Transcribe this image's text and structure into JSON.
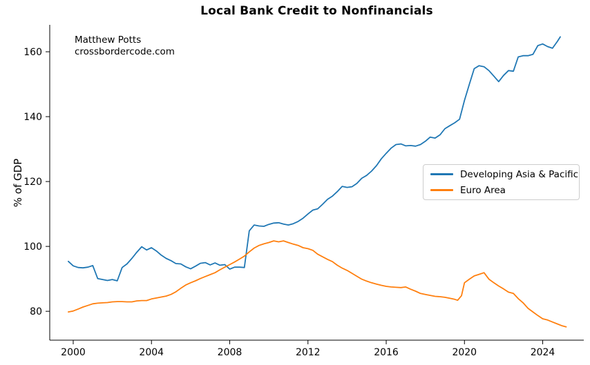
{
  "title": "Local Bank Credit to Nonfinancials",
  "annotation": {
    "line1": "Matthew Potts",
    "line2": "crossbordercode.com"
  },
  "y_axis_label": "% of GDP",
  "legend": {
    "items": [
      {
        "label": "Developing Asia & Pacific",
        "color": "#1f77b4"
      },
      {
        "label": "Euro Area",
        "color": "#ff7f0e"
      }
    ]
  },
  "chart_data": {
    "type": "line",
    "title": "Local Bank Credit to Nonfinancials",
    "xlabel": "",
    "ylabel": "% of GDP",
    "xlim": [
      1998.8,
      2026.1
    ],
    "ylim": [
      71.1,
      168.3
    ],
    "x_ticks": [
      2000,
      2004,
      2008,
      2012,
      2016,
      2020,
      2024
    ],
    "y_ticks": [
      80,
      100,
      120,
      140,
      160
    ],
    "grid": false,
    "legend_position": "center right",
    "annotation": "Matthew Potts\ncrossbordercode.com",
    "series": [
      {
        "name": "Developing Asia & Pacific",
        "color": "#1f77b4",
        "points": [
          [
            1999.75,
            95.4
          ],
          [
            2000.0,
            94.0
          ],
          [
            2000.25,
            93.5
          ],
          [
            2000.5,
            93.4
          ],
          [
            2000.75,
            93.6
          ],
          [
            2001.0,
            94.1
          ],
          [
            2001.25,
            90.1
          ],
          [
            2001.5,
            89.8
          ],
          [
            2001.75,
            89.5
          ],
          [
            2002.0,
            89.8
          ],
          [
            2002.25,
            89.4
          ],
          [
            2002.5,
            93.5
          ],
          [
            2002.75,
            94.6
          ],
          [
            2003.0,
            96.3
          ],
          [
            2003.25,
            98.2
          ],
          [
            2003.5,
            99.9
          ],
          [
            2003.75,
            98.9
          ],
          [
            2004.0,
            99.6
          ],
          [
            2004.25,
            98.6
          ],
          [
            2004.5,
            97.3
          ],
          [
            2004.75,
            96.3
          ],
          [
            2005.0,
            95.6
          ],
          [
            2005.25,
            94.7
          ],
          [
            2005.5,
            94.6
          ],
          [
            2005.75,
            93.7
          ],
          [
            2006.0,
            93.1
          ],
          [
            2006.25,
            93.9
          ],
          [
            2006.5,
            94.8
          ],
          [
            2006.75,
            95.0
          ],
          [
            2007.0,
            94.3
          ],
          [
            2007.25,
            94.9
          ],
          [
            2007.5,
            94.2
          ],
          [
            2007.75,
            94.4
          ],
          [
            2008.0,
            93.0
          ],
          [
            2008.25,
            93.6
          ],
          [
            2008.5,
            93.6
          ],
          [
            2008.75,
            93.5
          ],
          [
            2009.0,
            104.8
          ],
          [
            2009.25,
            106.6
          ],
          [
            2009.5,
            106.3
          ],
          [
            2009.75,
            106.2
          ],
          [
            2010.0,
            106.8
          ],
          [
            2010.25,
            107.2
          ],
          [
            2010.5,
            107.3
          ],
          [
            2010.75,
            106.9
          ],
          [
            2011.0,
            106.6
          ],
          [
            2011.25,
            107.0
          ],
          [
            2011.5,
            107.7
          ],
          [
            2011.75,
            108.7
          ],
          [
            2012.0,
            110.0
          ],
          [
            2012.25,
            111.2
          ],
          [
            2012.5,
            111.6
          ],
          [
            2012.75,
            113.0
          ],
          [
            2013.0,
            114.5
          ],
          [
            2013.25,
            115.5
          ],
          [
            2013.5,
            116.9
          ],
          [
            2013.75,
            118.5
          ],
          [
            2014.0,
            118.2
          ],
          [
            2014.25,
            118.4
          ],
          [
            2014.5,
            119.4
          ],
          [
            2014.75,
            121.0
          ],
          [
            2015.0,
            121.9
          ],
          [
            2015.25,
            123.2
          ],
          [
            2015.5,
            124.9
          ],
          [
            2015.75,
            127.0
          ],
          [
            2016.0,
            128.7
          ],
          [
            2016.25,
            130.3
          ],
          [
            2016.5,
            131.4
          ],
          [
            2016.75,
            131.6
          ],
          [
            2017.0,
            131.0
          ],
          [
            2017.25,
            131.1
          ],
          [
            2017.5,
            130.9
          ],
          [
            2017.75,
            131.4
          ],
          [
            2018.0,
            132.4
          ],
          [
            2018.25,
            133.7
          ],
          [
            2018.5,
            133.4
          ],
          [
            2018.75,
            134.4
          ],
          [
            2019.0,
            136.3
          ],
          [
            2019.25,
            137.2
          ],
          [
            2019.5,
            138.1
          ],
          [
            2019.75,
            139.2
          ],
          [
            2020.0,
            145.0
          ],
          [
            2020.25,
            150.0
          ],
          [
            2020.5,
            154.8
          ],
          [
            2020.75,
            155.7
          ],
          [
            2021.0,
            155.4
          ],
          [
            2021.25,
            154.2
          ],
          [
            2021.5,
            152.5
          ],
          [
            2021.75,
            150.8
          ],
          [
            2022.0,
            152.7
          ],
          [
            2022.25,
            154.2
          ],
          [
            2022.5,
            154.0
          ],
          [
            2022.75,
            158.4
          ],
          [
            2023.0,
            158.8
          ],
          [
            2023.25,
            158.8
          ],
          [
            2023.5,
            159.2
          ],
          [
            2023.75,
            161.9
          ],
          [
            2024.0,
            162.4
          ],
          [
            2024.25,
            161.6
          ],
          [
            2024.5,
            161.1
          ],
          [
            2024.75,
            163.2
          ],
          [
            2024.9,
            164.6
          ]
        ]
      },
      {
        "name": "Euro Area",
        "color": "#ff7f0e",
        "points": [
          [
            1999.75,
            79.8
          ],
          [
            2000.0,
            80.1
          ],
          [
            2000.25,
            80.7
          ],
          [
            2000.5,
            81.3
          ],
          [
            2000.75,
            81.8
          ],
          [
            2001.0,
            82.3
          ],
          [
            2001.25,
            82.5
          ],
          [
            2001.5,
            82.6
          ],
          [
            2001.75,
            82.7
          ],
          [
            2002.0,
            82.9
          ],
          [
            2002.25,
            83.0
          ],
          [
            2002.5,
            83.0
          ],
          [
            2002.75,
            82.9
          ],
          [
            2003.0,
            82.9
          ],
          [
            2003.25,
            83.2
          ],
          [
            2003.5,
            83.3
          ],
          [
            2003.75,
            83.3
          ],
          [
            2004.0,
            83.8
          ],
          [
            2004.25,
            84.1
          ],
          [
            2004.5,
            84.4
          ],
          [
            2004.75,
            84.7
          ],
          [
            2005.0,
            85.2
          ],
          [
            2005.25,
            86.0
          ],
          [
            2005.5,
            87.1
          ],
          [
            2005.75,
            88.1
          ],
          [
            2006.0,
            88.8
          ],
          [
            2006.25,
            89.4
          ],
          [
            2006.5,
            90.1
          ],
          [
            2006.75,
            90.7
          ],
          [
            2007.0,
            91.3
          ],
          [
            2007.25,
            91.9
          ],
          [
            2007.5,
            92.8
          ],
          [
            2007.75,
            93.6
          ],
          [
            2008.0,
            94.4
          ],
          [
            2008.25,
            95.2
          ],
          [
            2008.5,
            96.1
          ],
          [
            2008.75,
            97.0
          ],
          [
            2009.0,
            98.3
          ],
          [
            2009.25,
            99.5
          ],
          [
            2009.5,
            100.3
          ],
          [
            2009.75,
            100.8
          ],
          [
            2010.0,
            101.2
          ],
          [
            2010.25,
            101.7
          ],
          [
            2010.5,
            101.4
          ],
          [
            2010.75,
            101.7
          ],
          [
            2011.0,
            101.2
          ],
          [
            2011.25,
            100.7
          ],
          [
            2011.5,
            100.3
          ],
          [
            2011.75,
            99.6
          ],
          [
            2012.0,
            99.3
          ],
          [
            2012.25,
            98.8
          ],
          [
            2012.5,
            97.6
          ],
          [
            2012.75,
            96.8
          ],
          [
            2013.0,
            96.0
          ],
          [
            2013.25,
            95.3
          ],
          [
            2013.5,
            94.2
          ],
          [
            2013.75,
            93.3
          ],
          [
            2014.0,
            92.6
          ],
          [
            2014.25,
            91.7
          ],
          [
            2014.5,
            90.8
          ],
          [
            2014.75,
            89.9
          ],
          [
            2015.0,
            89.3
          ],
          [
            2015.25,
            88.8
          ],
          [
            2015.5,
            88.4
          ],
          [
            2015.75,
            88.0
          ],
          [
            2016.0,
            87.7
          ],
          [
            2016.25,
            87.5
          ],
          [
            2016.5,
            87.4
          ],
          [
            2016.75,
            87.3
          ],
          [
            2017.0,
            87.5
          ],
          [
            2017.25,
            86.8
          ],
          [
            2017.5,
            86.2
          ],
          [
            2017.75,
            85.5
          ],
          [
            2018.0,
            85.2
          ],
          [
            2018.25,
            84.9
          ],
          [
            2018.5,
            84.6
          ],
          [
            2018.75,
            84.5
          ],
          [
            2019.0,
            84.3
          ],
          [
            2019.25,
            84.0
          ],
          [
            2019.5,
            83.7
          ],
          [
            2019.65,
            83.4
          ],
          [
            2019.85,
            84.8
          ],
          [
            2020.0,
            88.8
          ],
          [
            2020.25,
            89.9
          ],
          [
            2020.5,
            90.9
          ],
          [
            2020.75,
            91.4
          ],
          [
            2021.0,
            91.9
          ],
          [
            2021.25,
            89.9
          ],
          [
            2021.5,
            88.8
          ],
          [
            2021.75,
            87.8
          ],
          [
            2022.0,
            86.9
          ],
          [
            2022.25,
            85.9
          ],
          [
            2022.5,
            85.5
          ],
          [
            2022.75,
            83.9
          ],
          [
            2023.0,
            82.6
          ],
          [
            2023.25,
            80.9
          ],
          [
            2023.5,
            79.8
          ],
          [
            2023.75,
            78.7
          ],
          [
            2024.0,
            77.7
          ],
          [
            2024.25,
            77.3
          ],
          [
            2024.5,
            76.7
          ],
          [
            2024.75,
            76.1
          ],
          [
            2025.0,
            75.5
          ],
          [
            2025.2,
            75.2
          ]
        ]
      }
    ]
  }
}
